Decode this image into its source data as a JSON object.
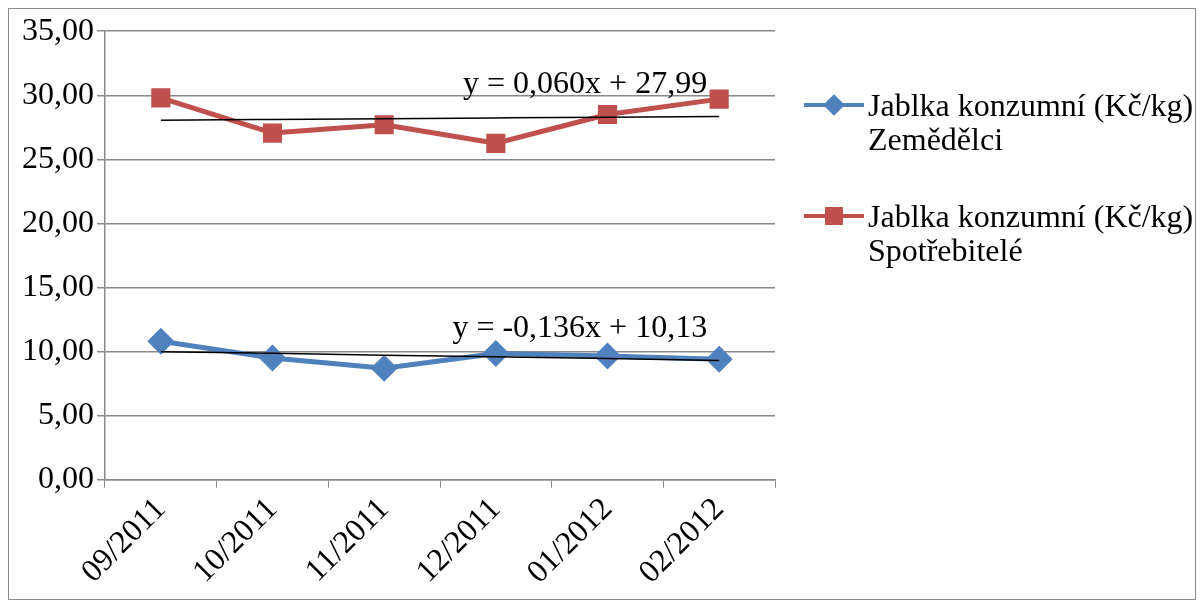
{
  "chart_data": {
    "type": "line",
    "categories": [
      "09/2011",
      "10/2011",
      "11/2011",
      "12/2011",
      "01/2012",
      "02/2012"
    ],
    "ylim": [
      0,
      35
    ],
    "yticks": [
      {
        "value": 0,
        "label": "0,00"
      },
      {
        "value": 5,
        "label": "5,00"
      },
      {
        "value": 10,
        "label": "10,00"
      },
      {
        "value": 15,
        "label": "15,00"
      },
      {
        "value": 20,
        "label": "20,00"
      },
      {
        "value": 25,
        "label": "25,00"
      },
      {
        "value": 30,
        "label": "30,00"
      },
      {
        "value": 35,
        "label": "35,00"
      }
    ],
    "grid": "y",
    "legend": "right",
    "line_style": "solid",
    "series": [
      {
        "name": "Jablka konzumní (Kč/kg) Zemědělci",
        "color": "#4f81bd",
        "marker": "diamond",
        "values": [
          10.8,
          9.5,
          8.7,
          9.85,
          9.65,
          9.4
        ]
      },
      {
        "name": "Jablka konzumní (Kč/kg) Spotřebitelé",
        "color": "#c0504d",
        "marker": "square",
        "values": [
          29.8,
          27.05,
          27.7,
          26.25,
          28.5,
          29.7
        ]
      },
      {
        "color": "#000000",
        "marker": "none",
        "values": [
          28.05,
          28.11,
          28.17,
          28.23,
          28.29,
          28.35
        ]
      },
      {
        "color": "#000000",
        "marker": "none",
        "values": [
          9.99,
          9.86,
          9.72,
          9.59,
          9.45,
          9.31
        ]
      }
    ],
    "annotations": [
      "y = 0,060x + 27,99",
      "y = -0,136x + 10,13"
    ]
  }
}
